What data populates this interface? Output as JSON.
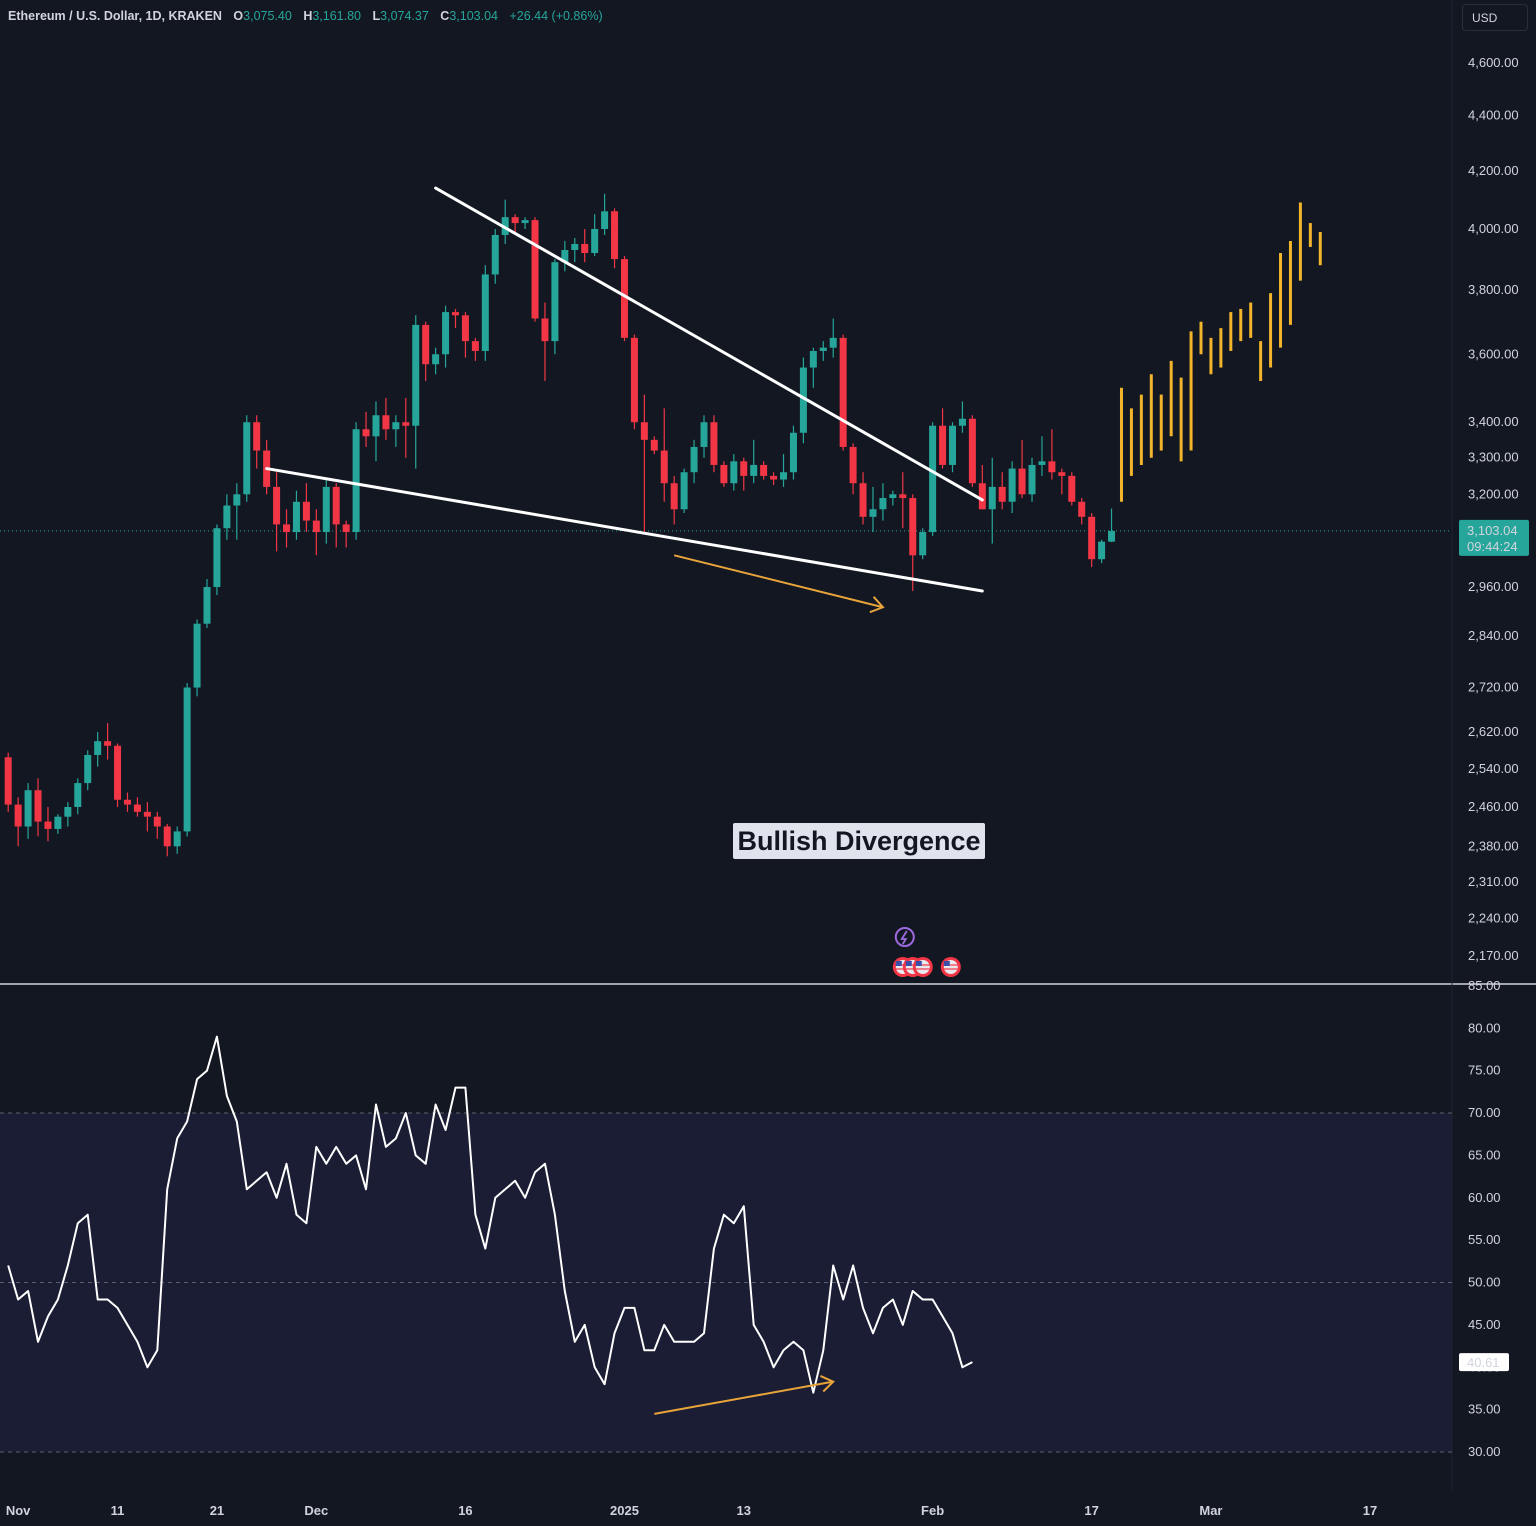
{
  "header": {
    "symbol": "Ethereum / U.S. Dollar, 1D, KRAKEN",
    "open_key": "O",
    "open": "3,075.40",
    "high_key": "H",
    "high": "3,161.80",
    "low_key": "L",
    "low": "3,074.37",
    "close_key": "C",
    "close": "3,103.04",
    "change": "+26.44 (+0.86%)"
  },
  "currency_button": "USD",
  "annotation": "Bullish Divergence",
  "colors": {
    "up": "#26a69a",
    "down": "#f23645",
    "projection": "#f2b42a",
    "arrow": "#e8a43a",
    "line": "#ffffff",
    "background": "#131722"
  },
  "chart_data": [
    {
      "type": "candlestick",
      "title": "Ethereum / U.S. Dollar, 1D, KRAKEN",
      "x_ticks": [
        "Nov",
        "11",
        "21",
        "Dec",
        "16",
        "2025",
        "13",
        "Feb",
        "17",
        "Mar",
        "17"
      ],
      "y_ticks": [
        "4,600.00",
        "4,400.00",
        "4,200.00",
        "4,000.00",
        "3,800.00",
        "3,600.00",
        "3,400.00",
        "3,300.00",
        "3,200.00",
        "2,960.00",
        "2,840.00",
        "2,720.00",
        "2,620.00",
        "2,540.00",
        "2,460.00",
        "2,380.00",
        "2,310.00",
        "2,240.00",
        "2,170.00"
      ],
      "y_scale": "log",
      "ylim": [
        2130,
        4850
      ],
      "current_price": "3,103.04",
      "countdown": "09:44:24",
      "ohlc": [
        [
          2565,
          2575,
          2450,
          2465
        ],
        [
          2465,
          2480,
          2380,
          2420
        ],
        [
          2420,
          2510,
          2395,
          2495
        ],
        [
          2495,
          2520,
          2400,
          2430
        ],
        [
          2430,
          2460,
          2390,
          2415
        ],
        [
          2415,
          2445,
          2405,
          2440
        ],
        [
          2440,
          2470,
          2420,
          2460
        ],
        [
          2460,
          2520,
          2445,
          2510
        ],
        [
          2510,
          2580,
          2495,
          2570
        ],
        [
          2570,
          2620,
          2545,
          2600
        ],
        [
          2600,
          2640,
          2560,
          2590
        ],
        [
          2590,
          2595,
          2460,
          2475
        ],
        [
          2475,
          2490,
          2450,
          2465
        ],
        [
          2465,
          2480,
          2440,
          2450
        ],
        [
          2450,
          2470,
          2410,
          2440
        ],
        [
          2440,
          2450,
          2395,
          2420
        ],
        [
          2420,
          2425,
          2360,
          2380
        ],
        [
          2380,
          2420,
          2365,
          2410
        ],
        [
          2410,
          2730,
          2400,
          2720
        ],
        [
          2720,
          2880,
          2700,
          2870
        ],
        [
          2870,
          2980,
          2860,
          2960
        ],
        [
          2960,
          3120,
          2940,
          3110
        ],
        [
          3110,
          3200,
          3080,
          3170
        ],
        [
          3170,
          3230,
          3080,
          3200
        ],
        [
          3200,
          3420,
          3180,
          3400
        ],
        [
          3400,
          3420,
          3270,
          3320
        ],
        [
          3320,
          3350,
          3200,
          3220
        ],
        [
          3220,
          3260,
          3050,
          3120
        ],
        [
          3120,
          3160,
          3060,
          3100
        ],
        [
          3100,
          3210,
          3080,
          3180
        ],
        [
          3180,
          3230,
          3100,
          3130
        ],
        [
          3130,
          3160,
          3040,
          3100
        ],
        [
          3100,
          3240,
          3070,
          3220
        ],
        [
          3220,
          3230,
          3060,
          3120
        ],
        [
          3120,
          3130,
          3060,
          3100
        ],
        [
          3100,
          3400,
          3080,
          3380
        ],
        [
          3380,
          3430,
          3330,
          3360
        ],
        [
          3360,
          3460,
          3290,
          3420
        ],
        [
          3420,
          3470,
          3350,
          3380
        ],
        [
          3380,
          3420,
          3330,
          3400
        ],
        [
          3400,
          3470,
          3300,
          3390
        ],
        [
          3390,
          3720,
          3270,
          3690
        ],
        [
          3690,
          3700,
          3520,
          3570
        ],
        [
          3570,
          3620,
          3540,
          3600
        ],
        [
          3600,
          3750,
          3560,
          3730
        ],
        [
          3730,
          3740,
          3680,
          3720
        ],
        [
          3720,
          3730,
          3590,
          3640
        ],
        [
          3640,
          3650,
          3580,
          3610
        ],
        [
          3610,
          3880,
          3580,
          3850
        ],
        [
          3850,
          4000,
          3820,
          3980
        ],
        [
          3980,
          4100,
          3950,
          4040
        ],
        [
          4040,
          4050,
          3990,
          4020
        ],
        [
          4020,
          4040,
          4000,
          4030
        ],
        [
          4030,
          4040,
          3700,
          3710
        ],
        [
          3710,
          3760,
          3520,
          3640
        ],
        [
          3640,
          3900,
          3600,
          3890
        ],
        [
          3890,
          3960,
          3860,
          3930
        ],
        [
          3930,
          3970,
          3890,
          3950
        ],
        [
          3950,
          4000,
          3890,
          3920
        ],
        [
          3920,
          4050,
          3910,
          4000
        ],
        [
          4000,
          4120,
          3980,
          4060
        ],
        [
          4060,
          4070,
          3870,
          3900
        ],
        [
          3900,
          3910,
          3640,
          3650
        ],
        [
          3650,
          3660,
          3380,
          3400
        ],
        [
          3400,
          3480,
          3100,
          3350
        ],
        [
          3350,
          3360,
          3310,
          3320
        ],
        [
          3320,
          3440,
          3180,
          3230
        ],
        [
          3230,
          3250,
          3120,
          3160
        ],
        [
          3160,
          3270,
          3150,
          3260
        ],
        [
          3260,
          3350,
          3230,
          3330
        ],
        [
          3330,
          3420,
          3300,
          3400
        ],
        [
          3400,
          3420,
          3260,
          3280
        ],
        [
          3280,
          3290,
          3220,
          3230
        ],
        [
          3230,
          3310,
          3210,
          3290
        ],
        [
          3290,
          3300,
          3210,
          3250
        ],
        [
          3250,
          3350,
          3230,
          3280
        ],
        [
          3280,
          3290,
          3240,
          3250
        ],
        [
          3250,
          3260,
          3225,
          3240
        ],
        [
          3240,
          3310,
          3220,
          3260
        ],
        [
          3260,
          3390,
          3240,
          3370
        ],
        [
          3370,
          3590,
          3340,
          3560
        ],
        [
          3560,
          3620,
          3500,
          3610
        ],
        [
          3610,
          3640,
          3580,
          3620
        ],
        [
          3620,
          3710,
          3590,
          3650
        ],
        [
          3650,
          3660,
          3320,
          3330
        ],
        [
          3330,
          3340,
          3200,
          3230
        ],
        [
          3230,
          3260,
          3120,
          3140
        ],
        [
          3140,
          3220,
          3100,
          3160
        ],
        [
          3160,
          3230,
          3130,
          3190
        ],
        [
          3190,
          3210,
          3170,
          3200
        ],
        [
          3200,
          3260,
          3110,
          3190
        ],
        [
          3190,
          3200,
          2950,
          3040
        ],
        [
          3040,
          3110,
          3030,
          3100
        ],
        [
          3100,
          3400,
          3090,
          3390
        ],
        [
          3390,
          3440,
          3270,
          3280
        ],
        [
          3280,
          3400,
          3260,
          3390
        ],
        [
          3390,
          3460,
          3370,
          3410
        ],
        [
          3410,
          3420,
          3220,
          3230
        ],
        [
          3230,
          3280,
          3160,
          3160
        ],
        [
          3160,
          3300,
          3070,
          3220
        ],
        [
          3220,
          3260,
          3160,
          3180
        ],
        [
          3180,
          3290,
          3150,
          3270
        ],
        [
          3270,
          3350,
          3190,
          3200
        ],
        [
          3200,
          3300,
          3180,
          3280
        ],
        [
          3280,
          3360,
          3250,
          3290
        ],
        [
          3290,
          3380,
          3240,
          3260
        ],
        [
          3260,
          3270,
          3200,
          3250
        ],
        [
          3250,
          3260,
          3170,
          3180
        ],
        [
          3180,
          3190,
          3120,
          3140
        ],
        [
          3140,
          3150,
          3010,
          3030
        ],
        [
          3030,
          3080,
          3020,
          3075
        ],
        [
          3075,
          3162,
          3074,
          3103
        ]
      ],
      "projection_bars": [
        [
          3180,
          3500
        ],
        [
          3250,
          3440
        ],
        [
          3280,
          3480
        ],
        [
          3300,
          3540
        ],
        [
          3320,
          3480
        ],
        [
          3360,
          3580
        ],
        [
          3290,
          3530
        ],
        [
          3320,
          3670
        ],
        [
          3600,
          3700
        ],
        [
          3540,
          3650
        ],
        [
          3560,
          3680
        ],
        [
          3610,
          3730
        ],
        [
          3640,
          3740
        ],
        [
          3650,
          3760
        ],
        [
          3520,
          3640
        ],
        [
          3560,
          3790
        ],
        [
          3620,
          3920
        ],
        [
          3690,
          3960
        ],
        [
          3830,
          4090
        ],
        [
          3940,
          4020
        ],
        [
          3880,
          3990
        ]
      ],
      "trendlines": [
        {
          "name": "upper",
          "from": {
            "date": "Dec 13",
            "price": 4140
          },
          "to": {
            "date": "Feb 6",
            "price": 3185
          }
        },
        {
          "name": "lower",
          "from": {
            "date": "Nov 26",
            "price": 3270
          },
          "to": {
            "date": "Feb 6",
            "price": 2950
          }
        }
      ],
      "price_divergence_arrow": {
        "from": {
          "date": "Jan 6",
          "price": 3040
        },
        "to": {
          "date": "Jan 27",
          "price": 2910
        }
      }
    },
    {
      "type": "line",
      "title": "",
      "ylim": [
        30,
        85
      ],
      "y_ticks": [
        "85.00",
        "80.00",
        "75.00",
        "70.00",
        "65.00",
        "60.00",
        "55.00",
        "50.00",
        "45.00",
        "40.00",
        "35.00",
        "30.00"
      ],
      "bands": [
        70,
        50,
        30
      ],
      "current_value": "40.61",
      "values": [
        52,
        48,
        49,
        43,
        46,
        48,
        52,
        57,
        58,
        48,
        48,
        47,
        45,
        43,
        40,
        42,
        61,
        67,
        69,
        74,
        75,
        79,
        72,
        69,
        61,
        62,
        63,
        60,
        64,
        58,
        57,
        66,
        64,
        66,
        64,
        65,
        61,
        71,
        66,
        67,
        70,
        65,
        64,
        71,
        68,
        73,
        73,
        58,
        54,
        60,
        61,
        62,
        60,
        63,
        64,
        58,
        49,
        43,
        45,
        40,
        38,
        44,
        47,
        47,
        42,
        42,
        45,
        43,
        43,
        43,
        44,
        54,
        58,
        57,
        59,
        45,
        43,
        40,
        42,
        43,
        42,
        37,
        42,
        52,
        48,
        52,
        47,
        44,
        47,
        48,
        45,
        49,
        48,
        48,
        46,
        44,
        40,
        40.61
      ],
      "divergence_arrow": {
        "from": {
          "date": "Jan 4",
          "value": 34.5
        },
        "to": {
          "date": "Jan 22",
          "value": 38.3
        }
      }
    }
  ]
}
